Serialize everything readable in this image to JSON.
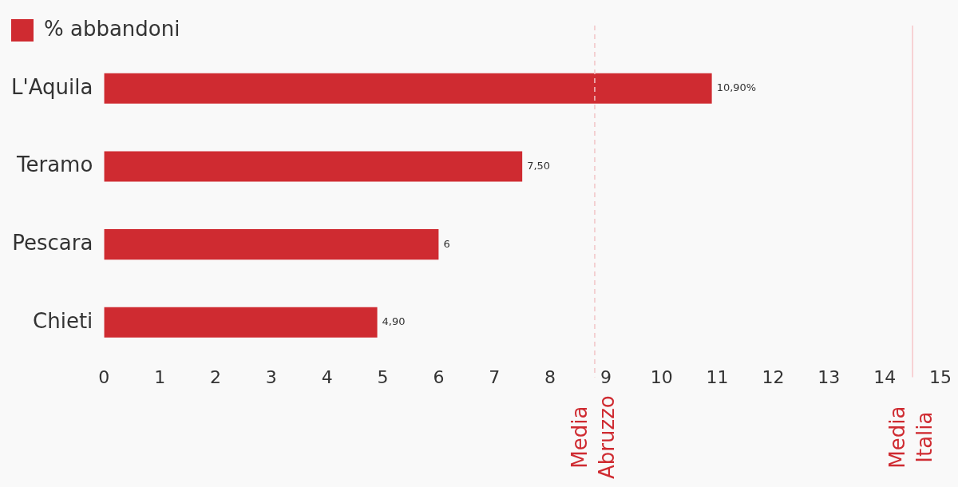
{
  "chart_data": {
    "type": "bar",
    "orientation": "horizontal",
    "categories": [
      "L'Aquila",
      "Teramo",
      "Pescara",
      "Chieti"
    ],
    "series": [
      {
        "name": "% abbandoni",
        "color": "#cf2b31",
        "values": [
          10.9,
          7.5,
          6,
          4.9
        ],
        "value_labels": [
          "10,90%",
          "7,50",
          "6",
          "4,90"
        ]
      }
    ],
    "xlim": [
      0,
      15
    ],
    "xticks": [
      0,
      1,
      2,
      3,
      4,
      5,
      6,
      7,
      8,
      9,
      10,
      11,
      12,
      13,
      14,
      15
    ],
    "ref_lines": [
      {
        "axis": "x",
        "value": 8.8,
        "label": "Media Abruzzo",
        "color": "#f2c4c6",
        "line_style": "dashed"
      },
      {
        "axis": "x",
        "value": 14.5,
        "label": "Media Italia",
        "color": "#f7c6c9",
        "line_style": "solid"
      }
    ],
    "grid": false,
    "legend": "top left"
  }
}
